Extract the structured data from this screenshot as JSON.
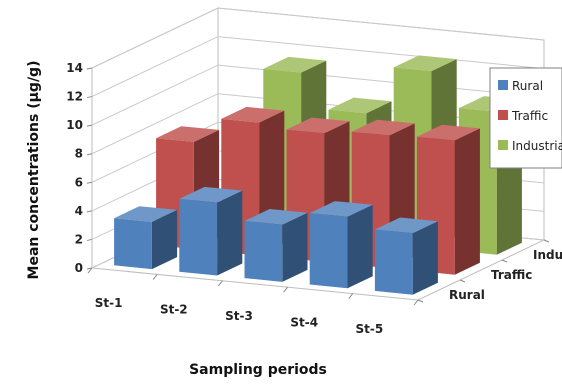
{
  "chart_data": {
    "type": "bar",
    "subtype": "3d-clustered-depth",
    "xlabel": "Sampling periods",
    "ylabel": "Mean concentrations (µg/g)",
    "ylim": [
      0,
      14
    ],
    "yticks": [
      "0",
      "2",
      "4",
      "6",
      "8",
      "10",
      "12",
      "14"
    ],
    "categories": [
      "St-1",
      "St-2",
      "St-3",
      "St-4",
      "St-5"
    ],
    "depth_labels": [
      "Rural",
      "Traffic",
      "Industrial"
    ],
    "series": [
      {
        "name": "Rural",
        "color": "#4f81bd",
        "values": [
          3.3,
          5.1,
          4.0,
          5.0,
          4.3
        ]
      },
      {
        "name": "Traffic",
        "color": "#c0504d",
        "values": [
          7.5,
          9.3,
          9.0,
          9.3,
          9.4
        ]
      },
      {
        "name": "Industrial",
        "color": "#9bbb59",
        "values": [
          0.4,
          11.4,
          9.0,
          12.4,
          10.0
        ]
      }
    ],
    "legend": {
      "placement": "right",
      "entries": [
        "Rural",
        "Traffic",
        "Industrial"
      ]
    },
    "grid": true
  }
}
